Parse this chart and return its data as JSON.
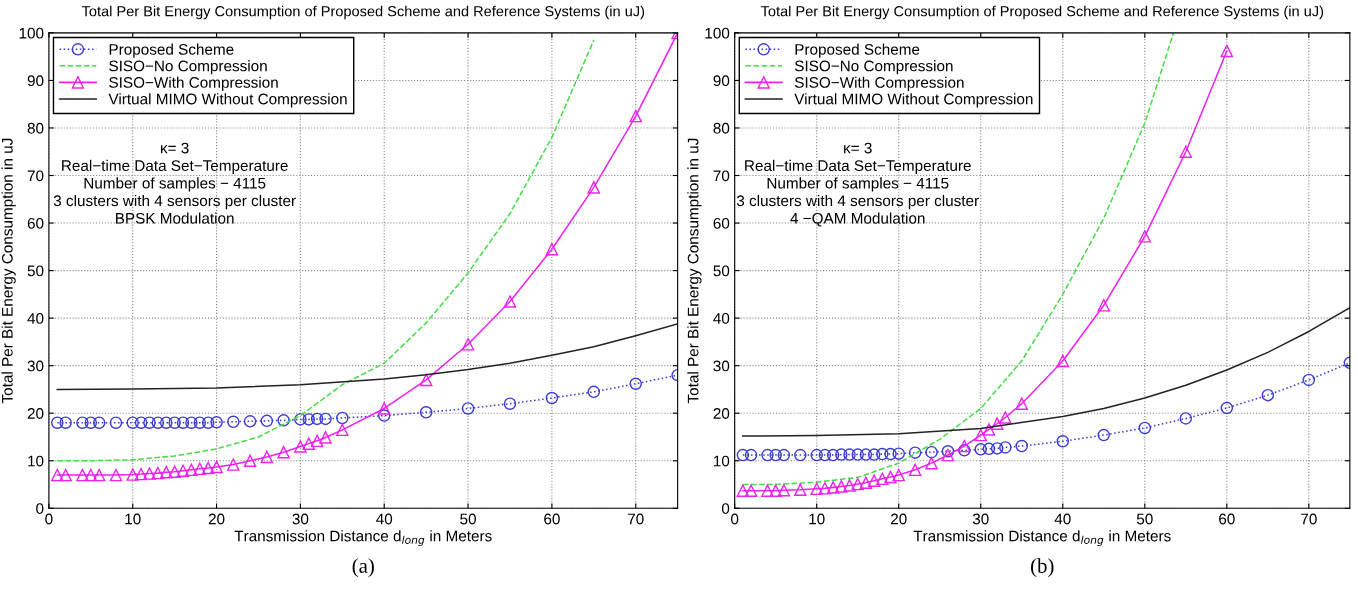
{
  "chart_data": [
    {
      "type": "line",
      "title": "Total Per Bit Energy Consumption of Proposed Scheme and Reference Systems (in uJ)",
      "xlabel": "Transmission Distance d$_{long}$ in Meters",
      "ylabel": "Total Per Bit Energy Consumption in uJ",
      "annotations": [
        "κ= 3\nReal−time Data Set−Temperature\nNumber of samples − 4115\n3 clusters with 4 sensors per cluster\nBPSK Modulation",
        "(a)"
      ],
      "xlim": [
        0,
        75
      ],
      "ylim": [
        0,
        100
      ],
      "xticks": [
        0,
        10,
        20,
        30,
        40,
        50,
        60,
        70
      ],
      "yticks": [
        0,
        10,
        20,
        30,
        40,
        50,
        60,
        70,
        80,
        90,
        100
      ],
      "grid": true,
      "legend": "top left",
      "series": [
        {
          "name": "Proposed Scheme",
          "color": "#3b3bd6",
          "marker": "circle",
          "line_style": "dotted",
          "x": [
            1,
            2,
            4,
            5,
            6,
            8,
            10,
            11,
            12,
            13,
            14,
            15,
            16,
            17,
            18,
            19,
            20,
            22,
            24,
            26,
            28,
            30,
            31,
            32,
            33,
            35,
            40,
            45,
            50,
            55,
            60,
            65,
            70,
            75
          ],
          "values": [
            18,
            18,
            18,
            18,
            18,
            18,
            18,
            18,
            18,
            18,
            18,
            18,
            18,
            18,
            18,
            18,
            18.1,
            18.2,
            18.3,
            18.4,
            18.5,
            18.7,
            18.7,
            18.8,
            18.8,
            19,
            19.5,
            20.2,
            21,
            22,
            23.2,
            24.5,
            26.2,
            28
          ]
        },
        {
          "name": "SISO−No Compression",
          "color": "#44dd44",
          "marker": "none",
          "line_style": "dashed",
          "x": [
            1,
            5,
            10,
            15,
            20,
            25,
            30,
            35,
            40,
            45,
            50,
            55,
            60,
            65
          ],
          "values": [
            10,
            10,
            10.2,
            11,
            12.5,
            15,
            19.5,
            26,
            30.5,
            39,
            49.5,
            62,
            78,
            98.5
          ]
        },
        {
          "name": "SISO−With Compression",
          "color": "#ee22ee",
          "marker": "triangle",
          "line_style": "solid",
          "x": [
            1,
            2,
            4,
            5,
            6,
            8,
            10,
            11,
            12,
            13,
            14,
            15,
            16,
            17,
            18,
            19,
            20,
            22,
            24,
            26,
            28,
            30,
            31,
            32,
            33,
            35,
            40,
            45,
            50,
            55,
            60,
            65,
            70,
            75
          ],
          "values": [
            7,
            7,
            7,
            7,
            7,
            7,
            7.1,
            7.2,
            7.3,
            7.4,
            7.6,
            7.7,
            7.9,
            8.1,
            8.3,
            8.5,
            8.7,
            9.2,
            10,
            10.8,
            11.8,
            13,
            13.6,
            14.2,
            14.9,
            16.5,
            21,
            27,
            34.5,
            43.5,
            54.5,
            67.5,
            82.5,
            100
          ]
        },
        {
          "name": "Virtual MIMO Without Compression",
          "color": "#222222",
          "marker": "none",
          "line_style": "solid",
          "x": [
            1,
            10,
            20,
            30,
            40,
            45,
            50,
            55,
            60,
            65,
            70,
            75
          ],
          "values": [
            25,
            25.1,
            25.3,
            26,
            27.2,
            28.1,
            29.2,
            30.5,
            32.2,
            34,
            36.3,
            38.8
          ]
        }
      ]
    },
    {
      "type": "line",
      "title": "Total Per Bit Energy Consumption of Proposed Scheme and Reference Systems (in uJ)",
      "xlabel": "Transmission Distance d$_{long}$ in Meters",
      "ylabel": "Total Per Bit Energy Consumption in uJ",
      "annotations": [
        "κ= 3\nReal−time Data Set−Temperature\nNumber of samples − 4115\n3 clusters with 4 sensors per cluster\n4 −QAM Modulation",
        "(b)"
      ],
      "xlim": [
        0,
        75
      ],
      "ylim": [
        0,
        100
      ],
      "xticks": [
        0,
        10,
        20,
        30,
        40,
        50,
        60,
        70
      ],
      "yticks": [
        0,
        10,
        20,
        30,
        40,
        50,
        60,
        70,
        80,
        90,
        100
      ],
      "grid": true,
      "legend": "top left",
      "series": [
        {
          "name": "Proposed Scheme",
          "color": "#3b3bd6",
          "marker": "circle",
          "line_style": "dotted",
          "x": [
            1,
            2,
            4,
            5,
            6,
            8,
            10,
            11,
            12,
            13,
            14,
            15,
            16,
            17,
            18,
            19,
            20,
            22,
            24,
            26,
            28,
            30,
            31,
            32,
            33,
            35,
            40,
            45,
            50,
            55,
            60,
            65,
            70,
            75
          ],
          "values": [
            11.2,
            11.2,
            11.2,
            11.2,
            11.2,
            11.2,
            11.2,
            11.2,
            11.2,
            11.3,
            11.3,
            11.3,
            11.3,
            11.3,
            11.4,
            11.4,
            11.5,
            11.7,
            11.8,
            12,
            12.2,
            12.4,
            12.5,
            12.6,
            12.8,
            13.1,
            14.1,
            15.4,
            16.9,
            18.9,
            21.1,
            23.8,
            27,
            30.6
          ]
        },
        {
          "name": "SISO−No Compression",
          "color": "#44dd44",
          "marker": "none",
          "line_style": "dashed",
          "x": [
            1,
            5,
            10,
            15,
            20,
            25,
            30,
            35,
            40,
            45,
            50,
            53.5
          ],
          "values": [
            5,
            5,
            5.5,
            6.5,
            9.5,
            14.5,
            21,
            31,
            45,
            61,
            81,
            100
          ]
        },
        {
          "name": "SISO−With Compression",
          "color": "#ee22ee",
          "marker": "triangle",
          "line_style": "solid",
          "x": [
            1,
            2,
            4,
            5,
            6,
            8,
            10,
            11,
            12,
            13,
            14,
            15,
            16,
            17,
            18,
            19,
            20,
            22,
            24,
            26,
            28,
            30,
            31,
            32,
            33,
            35,
            40,
            45,
            50,
            55,
            60
          ],
          "values": [
            3.7,
            3.7,
            3.7,
            3.7,
            3.8,
            3.9,
            4.1,
            4.2,
            4.4,
            4.6,
            4.8,
            5.1,
            5.4,
            5.8,
            6.2,
            6.6,
            7,
            8.1,
            9.5,
            11.2,
            13.1,
            15.4,
            16.6,
            17.8,
            19.1,
            22,
            31,
            42.7,
            57.2,
            75,
            96.2
          ]
        },
        {
          "name": "Virtual MIMO Without Compression",
          "color": "#222222",
          "marker": "none",
          "line_style": "solid",
          "x": [
            1,
            10,
            20,
            30,
            40,
            45,
            50,
            55,
            60,
            65,
            70,
            75
          ],
          "values": [
            15.2,
            15.3,
            15.7,
            16.8,
            19.3,
            21,
            23.2,
            25.9,
            29.1,
            32.8,
            37.2,
            42.2
          ]
        }
      ]
    }
  ]
}
